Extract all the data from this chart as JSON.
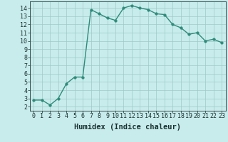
{
  "x": [
    0,
    1,
    2,
    3,
    4,
    5,
    6,
    7,
    8,
    9,
    10,
    11,
    12,
    13,
    14,
    15,
    16,
    17,
    18,
    19,
    20,
    21,
    22,
    23
  ],
  "y": [
    2.8,
    2.8,
    2.2,
    3.0,
    4.8,
    5.6,
    5.6,
    13.8,
    13.3,
    12.8,
    12.5,
    14.0,
    14.3,
    14.0,
    13.8,
    13.3,
    13.2,
    12.0,
    11.6,
    10.8,
    11.0,
    10.0,
    10.2,
    9.8
  ],
  "line_color": "#2e8b7a",
  "marker_color": "#2e8b7a",
  "bg_color": "#c8ecec",
  "grid_color": "#a0c8c8",
  "xlabel": "Humidex (Indice chaleur)",
  "xlim": [
    -0.5,
    23.5
  ],
  "ylim": [
    1.5,
    14.8
  ],
  "xtick_labels": [
    "0",
    "1",
    "2",
    "3",
    "4",
    "5",
    "6",
    "7",
    "8",
    "9",
    "10",
    "11",
    "12",
    "13",
    "14",
    "15",
    "16",
    "17",
    "18",
    "19",
    "20",
    "21",
    "22",
    "23"
  ],
  "ytick_values": [
    2,
    3,
    4,
    5,
    6,
    7,
    8,
    9,
    10,
    11,
    12,
    13,
    14
  ],
  "font_color": "#1a3030",
  "xlabel_fontsize": 7.5,
  "tick_fontsize": 6,
  "line_width": 1.0,
  "marker_size": 2.5
}
